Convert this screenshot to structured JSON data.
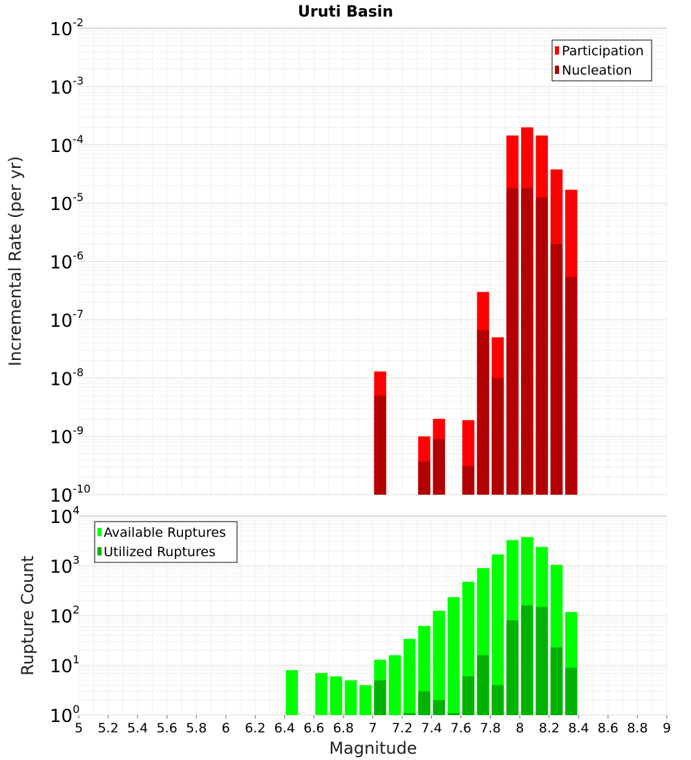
{
  "figure_title": "Uruti Basin",
  "chart_data": [
    {
      "type": "bar",
      "ylabel": "Incremental Rate (per yr)",
      "yscale": "log",
      "ylim": [
        1e-10,
        0.01
      ],
      "xlim": [
        5,
        9
      ],
      "grid": true,
      "legend_placement": "top-right",
      "y_tick_labels": [
        {
          "base": "10",
          "exp": "-10"
        },
        {
          "base": "10",
          "exp": "-9"
        },
        {
          "base": "10",
          "exp": "-8"
        },
        {
          "base": "10",
          "exp": "-7"
        },
        {
          "base": "10",
          "exp": "-6"
        },
        {
          "base": "10",
          "exp": "-5"
        },
        {
          "base": "10",
          "exp": "-4"
        },
        {
          "base": "10",
          "exp": "-3"
        },
        {
          "base": "10",
          "exp": "-2"
        }
      ],
      "series": [
        {
          "name": "Participation",
          "color": "#ff0000",
          "points": [
            [
              7.05,
              1.3e-08
            ],
            [
              7.35,
              1e-09
            ],
            [
              7.45,
              2e-09
            ],
            [
              7.65,
              1.9e-09
            ],
            [
              7.75,
              3e-07
            ],
            [
              7.85,
              5e-08
            ],
            [
              7.95,
              0.000145
            ],
            [
              8.05,
              0.0002
            ],
            [
              8.15,
              0.000145
            ],
            [
              8.25,
              3.8e-05
            ],
            [
              8.35,
              1.7e-05
            ]
          ]
        },
        {
          "name": "Nucleation",
          "color": "#b30000",
          "points": [
            [
              7.05,
              5e-09
            ],
            [
              7.35,
              3.7e-10
            ],
            [
              7.45,
              9e-10
            ],
            [
              7.65,
              3.1e-10
            ],
            [
              7.75,
              6.6e-08
            ],
            [
              7.85,
              1e-08
            ],
            [
              7.95,
              1.8e-05
            ],
            [
              8.05,
              1.8e-05
            ],
            [
              8.15,
              1.25e-05
            ],
            [
              8.25,
              2e-06
            ],
            [
              8.35,
              5.5e-07
            ]
          ]
        }
      ]
    },
    {
      "type": "bar",
      "xlabel": "Magnitude",
      "ylabel": "Rupture Count",
      "yscale": "log",
      "ylim": [
        1,
        10000
      ],
      "xlim": [
        5,
        9
      ],
      "grid": true,
      "legend_placement": "top-left",
      "x_tick_labels": [
        "5",
        "5.2",
        "5.4",
        "5.6",
        "5.8",
        "6",
        "6.2",
        "6.4",
        "6.6",
        "6.8",
        "7",
        "7.2",
        "7.4",
        "7.6",
        "7.8",
        "8",
        "8.2",
        "8.4",
        "8.6",
        "8.8",
        "9"
      ],
      "y_tick_labels": [
        {
          "base": "10",
          "exp": "0"
        },
        {
          "base": "10",
          "exp": "1"
        },
        {
          "base": "10",
          "exp": "2"
        },
        {
          "base": "10",
          "exp": "3"
        },
        {
          "base": "10",
          "exp": "4"
        }
      ],
      "series": [
        {
          "name": "Available Ruptures",
          "color": "#00ff00",
          "points": [
            [
              6.45,
              8
            ],
            [
              6.65,
              7
            ],
            [
              6.75,
              6
            ],
            [
              6.85,
              5
            ],
            [
              6.95,
              4
            ],
            [
              7.05,
              13
            ],
            [
              7.15,
              16
            ],
            [
              7.25,
              34
            ],
            [
              7.35,
              62
            ],
            [
              7.45,
              125
            ],
            [
              7.55,
              235
            ],
            [
              7.65,
              480
            ],
            [
              7.75,
              900
            ],
            [
              7.85,
              1700
            ],
            [
              7.95,
              3300
            ],
            [
              8.05,
              3800
            ],
            [
              8.15,
              2400
            ],
            [
              8.25,
              1050
            ],
            [
              8.35,
              118
            ]
          ]
        },
        {
          "name": "Utilized Ruptures",
          "color": "#00b300",
          "points": [
            [
              7.05,
              5
            ],
            [
              7.25,
              1.1
            ],
            [
              7.35,
              3
            ],
            [
              7.45,
              2
            ],
            [
              7.55,
              1.1
            ],
            [
              7.65,
              6
            ],
            [
              7.75,
              16
            ],
            [
              7.85,
              4
            ],
            [
              7.95,
              80
            ],
            [
              8.05,
              160
            ],
            [
              8.15,
              150
            ],
            [
              8.25,
              23
            ],
            [
              8.35,
              9
            ]
          ]
        }
      ]
    }
  ]
}
